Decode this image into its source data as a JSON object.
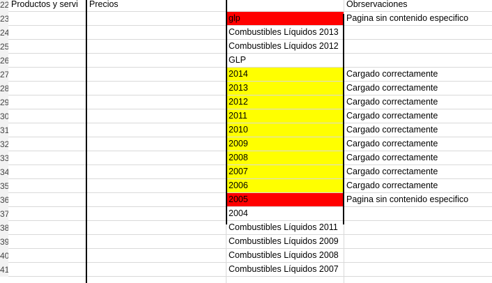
{
  "columns": {
    "a_header": "Productos y servi",
    "b_header": "Precios",
    "c_header": "",
    "d_header": "Obrservaciones"
  },
  "colors": {
    "red": "#ff0000",
    "yellow": "#ffff00"
  },
  "rows": [
    {
      "num": "22",
      "c": "",
      "d": "Obrservaciones",
      "fill": ""
    },
    {
      "num": "23",
      "c": "glp",
      "d": "Pagina sin contenido especifico",
      "fill": "red"
    },
    {
      "num": "24",
      "c": "Combustibles Líquidos 2013",
      "d": "",
      "fill": ""
    },
    {
      "num": "25",
      "c": "Combustibles Líquidos 2012",
      "d": "",
      "fill": ""
    },
    {
      "num": "26",
      "c": "GLP",
      "d": "",
      "fill": ""
    },
    {
      "num": "27",
      "c": "2014",
      "d": "Cargado correctamente",
      "fill": "yellow"
    },
    {
      "num": "28",
      "c": "2013",
      "d": "Cargado correctamente",
      "fill": "yellow"
    },
    {
      "num": "29",
      "c": "2012",
      "d": "Cargado correctamente",
      "fill": "yellow"
    },
    {
      "num": "30",
      "c": "2011",
      "d": "Cargado correctamente",
      "fill": "yellow"
    },
    {
      "num": "31",
      "c": "2010",
      "d": "Cargado correctamente",
      "fill": "yellow"
    },
    {
      "num": "32",
      "c": "2009",
      "d": "Cargado correctamente",
      "fill": "yellow"
    },
    {
      "num": "33",
      "c": "2008",
      "d": "Cargado correctamente",
      "fill": "yellow"
    },
    {
      "num": "34",
      "c": "2007",
      "d": "Cargado correctamente",
      "fill": "yellow"
    },
    {
      "num": "35",
      "c": "2006",
      "d": "Cargado correctamente",
      "fill": "yellow"
    },
    {
      "num": "36",
      "c": "2005",
      "d": "Pagina sin contenido especifico",
      "fill": "red"
    },
    {
      "num": "37",
      "c": "2004",
      "d": "",
      "fill": ""
    },
    {
      "num": "38",
      "c": "Combustibles Líquidos 2011",
      "d": "",
      "fill": ""
    },
    {
      "num": "39",
      "c": "Combustibles Líquidos 2009",
      "d": "",
      "fill": ""
    },
    {
      "num": "40",
      "c": "Combustibles Líquidos 2008",
      "d": "",
      "fill": ""
    },
    {
      "num": "41",
      "c": "Combustibles Líquidos 2007",
      "d": "",
      "fill": ""
    }
  ]
}
